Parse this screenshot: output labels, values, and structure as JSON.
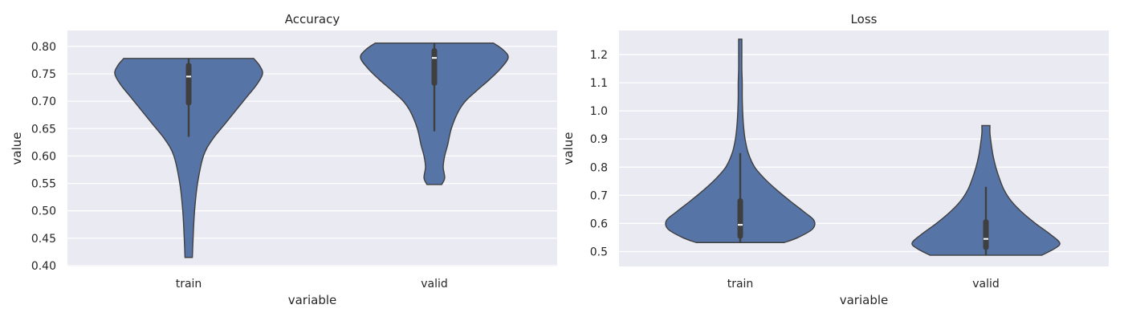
{
  "chart_data": [
    {
      "type": "violin",
      "title": "Accuracy",
      "xlabel": "variable",
      "ylabel": "value",
      "categories": [
        "train",
        "valid"
      ],
      "yticks": [
        "0.40",
        "0.45",
        "0.50",
        "0.55",
        "0.60",
        "0.65",
        "0.70",
        "0.75",
        "0.80"
      ],
      "ytick_values": [
        0.4,
        0.45,
        0.5,
        0.55,
        0.6,
        0.65,
        0.7,
        0.75,
        0.8
      ],
      "ylim": [
        0.4,
        0.81
      ],
      "grid": true,
      "series": [
        {
          "category": "train",
          "min": 0.415,
          "max": 0.778,
          "q1": 0.697,
          "median": 0.745,
          "q3": 0.765,
          "whisker_low": 0.635,
          "whisker_high": 0.778,
          "density": [
            [
              0.415,
              0.05
            ],
            [
              0.45,
              0.06
            ],
            [
              0.5,
              0.08
            ],
            [
              0.55,
              0.12
            ],
            [
              0.6,
              0.2
            ],
            [
              0.63,
              0.32
            ],
            [
              0.66,
              0.5
            ],
            [
              0.69,
              0.68
            ],
            [
              0.71,
              0.8
            ],
            [
              0.73,
              0.92
            ],
            [
              0.75,
              1.0
            ],
            [
              0.765,
              0.96
            ],
            [
              0.778,
              0.88
            ]
          ]
        },
        {
          "category": "valid",
          "min": 0.548,
          "max": 0.806,
          "q1": 0.733,
          "median": 0.779,
          "q3": 0.792,
          "whisker_low": 0.645,
          "whisker_high": 0.806,
          "density": [
            [
              0.548,
              0.1
            ],
            [
              0.56,
              0.14
            ],
            [
              0.58,
              0.12
            ],
            [
              0.6,
              0.14
            ],
            [
              0.62,
              0.18
            ],
            [
              0.65,
              0.23
            ],
            [
              0.68,
              0.32
            ],
            [
              0.7,
              0.42
            ],
            [
              0.72,
              0.58
            ],
            [
              0.74,
              0.75
            ],
            [
              0.76,
              0.9
            ],
            [
              0.78,
              1.0
            ],
            [
              0.795,
              0.92
            ],
            [
              0.806,
              0.8
            ]
          ]
        }
      ]
    },
    {
      "type": "violin",
      "title": "Loss",
      "xlabel": "variable",
      "ylabel": "value",
      "categories": [
        "train",
        "valid"
      ],
      "yticks": [
        "0.5",
        "0.6",
        "0.7",
        "0.8",
        "0.9",
        "1.0",
        "1.1",
        "1.2"
      ],
      "ytick_values": [
        0.5,
        0.6,
        0.7,
        0.8,
        0.9,
        1.0,
        1.1,
        1.2
      ],
      "ylim": [
        0.45,
        1.28
      ],
      "grid": true,
      "series": [
        {
          "category": "train",
          "min": 0.532,
          "max": 1.255,
          "q1": 0.555,
          "median": 0.595,
          "q3": 0.68,
          "whisker_low": 0.532,
          "whisker_high": 0.85,
          "density": [
            [
              0.532,
              0.55
            ],
            [
              0.55,
              0.72
            ],
            [
              0.58,
              0.9
            ],
            [
              0.61,
              0.92
            ],
            [
              0.64,
              0.8
            ],
            [
              0.68,
              0.62
            ],
            [
              0.72,
              0.45
            ],
            [
              0.76,
              0.3
            ],
            [
              0.8,
              0.18
            ],
            [
              0.85,
              0.1
            ],
            [
              0.9,
              0.06
            ],
            [
              0.95,
              0.04
            ],
            [
              1.0,
              0.03
            ],
            [
              1.05,
              0.025
            ],
            [
              1.1,
              0.025
            ],
            [
              1.15,
              0.02
            ],
            [
              1.2,
              0.02
            ],
            [
              1.255,
              0.02
            ]
          ]
        },
        {
          "category": "valid",
          "min": 0.487,
          "max": 0.948,
          "q1": 0.515,
          "median": 0.545,
          "q3": 0.605,
          "whisker_low": 0.487,
          "whisker_high": 0.73,
          "density": [
            [
              0.487,
              0.62
            ],
            [
              0.51,
              0.76
            ],
            [
              0.53,
              0.82
            ],
            [
              0.56,
              0.72
            ],
            [
              0.6,
              0.55
            ],
            [
              0.64,
              0.4
            ],
            [
              0.68,
              0.28
            ],
            [
              0.72,
              0.2
            ],
            [
              0.76,
              0.15
            ],
            [
              0.8,
              0.11
            ],
            [
              0.84,
              0.08
            ],
            [
              0.88,
              0.06
            ],
            [
              0.92,
              0.045
            ],
            [
              0.948,
              0.045
            ]
          ]
        }
      ]
    }
  ]
}
